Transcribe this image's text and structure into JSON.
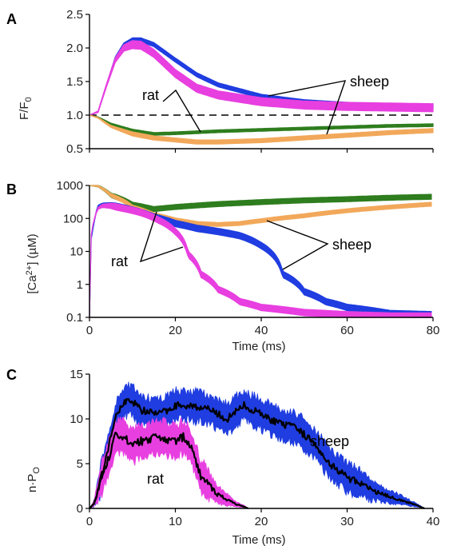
{
  "colors": {
    "sheep_fluo": "#1f3de0",
    "rat_fluo": "#e83fe0",
    "rat_green": "#2e7d1e",
    "sheep_orange": "#f2a85a",
    "sheep_blue": "#1f3de0",
    "rat_magenta": "#e83fe0"
  },
  "chart_data": [
    {
      "type": "line",
      "panel": "A",
      "ylabel_main": "F/F",
      "ylabel_sub": "0",
      "xlim": [
        0,
        80
      ],
      "ylim": [
        0.5,
        2.5
      ],
      "yticks": [
        "0.5",
        "1.0",
        "1.5",
        "2.0",
        "2.5"
      ],
      "baseline": 1.0,
      "annotations": [
        "rat",
        "sheep"
      ],
      "series": [
        {
          "name": "sheep",
          "color_key": "sheep_fluo",
          "band": 0.03,
          "x": [
            0,
            2,
            4,
            6,
            8,
            10,
            12,
            15,
            20,
            25,
            30,
            40,
            50,
            60,
            70,
            80
          ],
          "y": [
            1.0,
            1.05,
            1.45,
            1.85,
            2.05,
            2.12,
            2.12,
            2.05,
            1.82,
            1.6,
            1.45,
            1.28,
            1.2,
            1.16,
            1.14,
            1.13
          ]
        },
        {
          "name": "rat",
          "color_key": "rat_fluo",
          "band": 0.06,
          "x": [
            0,
            2,
            4,
            6,
            8,
            10,
            12,
            15,
            20,
            25,
            30,
            40,
            50,
            60,
            70,
            80
          ],
          "y": [
            1.0,
            1.05,
            1.45,
            1.82,
            2.0,
            2.05,
            2.04,
            1.92,
            1.62,
            1.4,
            1.3,
            1.2,
            1.15,
            1.13,
            1.12,
            1.11
          ]
        },
        {
          "name": "rat",
          "color_key": "rat_green",
          "band": 0.02,
          "x": [
            0,
            2,
            5,
            10,
            15,
            20,
            30,
            40,
            50,
            60,
            70,
            80
          ],
          "y": [
            1.0,
            0.97,
            0.87,
            0.77,
            0.72,
            0.73,
            0.76,
            0.78,
            0.8,
            0.82,
            0.84,
            0.85
          ]
        },
        {
          "name": "sheep",
          "color_key": "sheep_orange",
          "band": 0.03,
          "x": [
            0,
            2,
            5,
            10,
            15,
            20,
            25,
            30,
            40,
            50,
            60,
            70,
            80
          ],
          "y": [
            1.0,
            0.96,
            0.83,
            0.72,
            0.66,
            0.63,
            0.6,
            0.6,
            0.62,
            0.66,
            0.7,
            0.74,
            0.77
          ]
        }
      ]
    },
    {
      "type": "line",
      "panel": "B",
      "yscale": "log",
      "ylabel_main": "[Ca",
      "ylabel_sup": "2+",
      "ylabel_end": "] (µM)",
      "xlabel": "Time (ms)",
      "xlim": [
        0,
        80
      ],
      "ylim": [
        0.1,
        1000
      ],
      "xticks": [
        "0",
        "20",
        "40",
        "60",
        "80"
      ],
      "yticks": [
        "0.1",
        "1",
        "10",
        "100",
        "1000"
      ],
      "annotations": [
        "rat",
        "sheep"
      ],
      "series": [
        {
          "name": "rat",
          "color_key": "rat_green",
          "band_lo": 0.85,
          "band_hi": 1.2,
          "x": [
            0,
            2,
            5,
            10,
            15,
            20,
            30,
            40,
            50,
            60,
            70,
            80
          ],
          "y": [
            1000,
            950,
            500,
            260,
            190,
            220,
            270,
            310,
            350,
            380,
            420,
            450
          ]
        },
        {
          "name": "sheep",
          "color_key": "sheep_orange",
          "band_lo": 0.88,
          "band_hi": 1.15,
          "x": [
            0,
            2,
            5,
            10,
            15,
            20,
            25,
            30,
            35,
            40,
            50,
            60,
            70,
            80
          ],
          "y": [
            1000,
            950,
            500,
            220,
            130,
            90,
            70,
            65,
            70,
            85,
            120,
            170,
            220,
            270
          ]
        },
        {
          "name": "sheep",
          "color_key": "sheep_blue",
          "band_lo": 0.8,
          "band_hi": 1.25,
          "x": [
            0,
            1,
            2,
            3,
            5,
            10,
            15,
            20,
            25,
            30,
            35,
            40,
            45,
            50,
            55,
            60,
            70,
            80
          ],
          "y": [
            0.1,
            60,
            230,
            260,
            250,
            180,
            110,
            70,
            50,
            40,
            30,
            15,
            2,
            0.6,
            0.3,
            0.2,
            0.13,
            0.12
          ]
        },
        {
          "name": "rat",
          "color_key": "rat_magenta",
          "band_lo": 0.8,
          "band_hi": 1.25,
          "x": [
            0,
            1,
            2,
            3,
            5,
            8,
            12,
            16,
            20,
            23,
            26,
            30,
            35,
            40,
            50,
            60,
            70,
            80
          ],
          "y": [
            0.1,
            80,
            200,
            240,
            240,
            200,
            150,
            90,
            40,
            8,
            2,
            0.7,
            0.3,
            0.2,
            0.14,
            0.12,
            0.11,
            0.11
          ]
        }
      ]
    },
    {
      "type": "area",
      "panel": "C",
      "ylabel_main": "n·P",
      "ylabel_sub": "O",
      "xlabel": "Time (ms)",
      "xlim": [
        0,
        40
      ],
      "ylim": [
        0,
        15
      ],
      "xticks": [
        "0",
        "10",
        "20",
        "30",
        "40"
      ],
      "yticks": [
        "0",
        "5",
        "10",
        "15"
      ],
      "annotations": [
        "sheep",
        "rat"
      ],
      "series": [
        {
          "name": "sheep",
          "color_key": "sheep_blue",
          "noise": 1.4,
          "x": [
            0,
            0.5,
            1,
            2,
            3,
            4,
            5,
            6,
            8,
            10,
            12,
            14,
            16,
            18,
            20,
            22,
            24,
            26,
            28,
            30,
            32,
            34,
            36,
            38,
            39
          ],
          "y": [
            0,
            0.5,
            2,
            6,
            10,
            12,
            12,
            11,
            10.5,
            11.5,
            11.5,
            11,
            10,
            11.5,
            10.5,
            9.5,
            9,
            7.5,
            5,
            3.5,
            2.5,
            1.6,
            1,
            0.4,
            0
          ]
        },
        {
          "name": "rat",
          "color_key": "rat_magenta",
          "noise": 1.6,
          "x": [
            0,
            0.5,
            1,
            2,
            3,
            4,
            5,
            6,
            8,
            10,
            11,
            12,
            13,
            14,
            15,
            16,
            17,
            18,
            18.5
          ],
          "y": [
            0,
            0.5,
            2,
            5,
            8,
            8,
            7,
            7.5,
            8,
            7.5,
            8,
            6.5,
            3.5,
            2.5,
            1.5,
            1,
            0.5,
            0.2,
            0
          ]
        }
      ]
    }
  ]
}
